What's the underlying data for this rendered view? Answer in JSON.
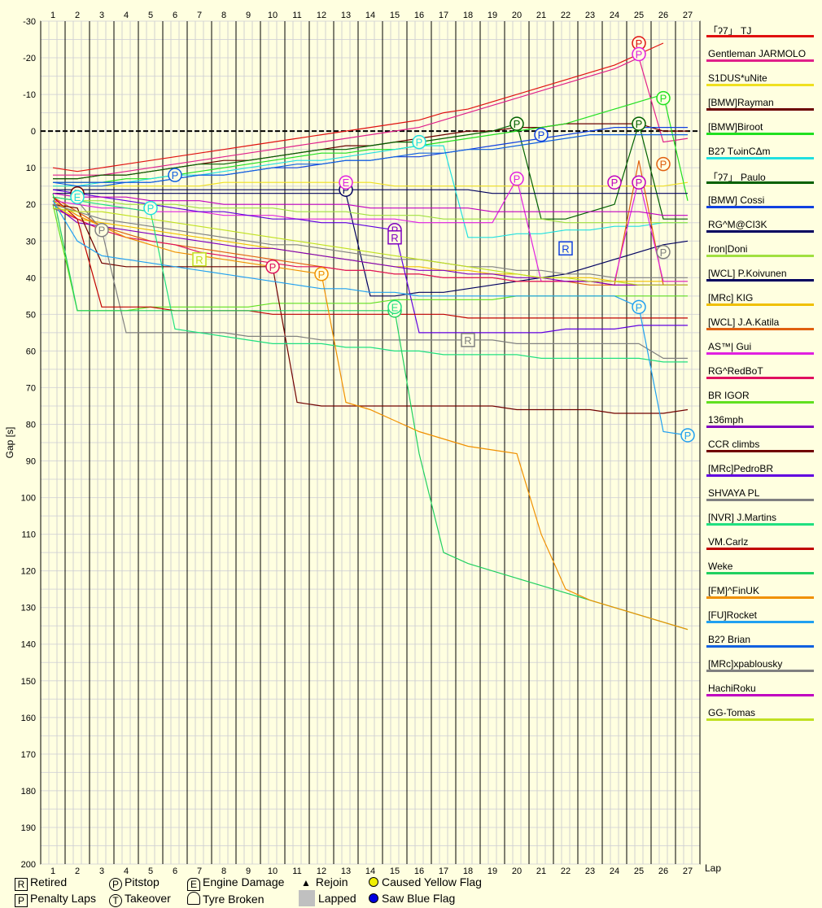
{
  "chart_data": {
    "type": "line",
    "xlabel": "Lap",
    "ylabel": "Gap [s]",
    "ylim": [
      -30,
      200
    ],
    "x_ticks": [
      "1",
      "2",
      "3",
      "4",
      "5",
      "6",
      "7",
      "8",
      "9",
      "10",
      "11",
      "12",
      "13",
      "14",
      "15",
      "16",
      "17",
      "18",
      "19",
      "20",
      "21",
      "22",
      "23",
      "24",
      "25",
      "26",
      "27"
    ],
    "y_ticks": [
      "-30",
      "-20",
      "-10",
      "0",
      "10",
      "20",
      "30",
      "40",
      "50",
      "60",
      "70",
      "80",
      "90",
      "100",
      "110",
      "120",
      "130",
      "140",
      "150",
      "160",
      "170",
      "180",
      "190",
      "200"
    ],
    "reference_line": 0,
    "grid": true,
    "legend_position": "right",
    "series": [
      {
        "name": "「ʔ7」 TJ",
        "color": "#e01010",
        "values": [
          10,
          11,
          10,
          9,
          8,
          7,
          6,
          5,
          4,
          3,
          2,
          1,
          0,
          -1,
          -2,
          -3,
          -5,
          -6,
          -8,
          -10,
          -12,
          -14,
          -16,
          -18,
          -21,
          -24,
          null
        ]
      },
      {
        "name": "Gentleman JARMOLO",
        "color": "#e0208a",
        "values": [
          12,
          12,
          12,
          11,
          10,
          9,
          8,
          7,
          6,
          5,
          4,
          3,
          2,
          1,
          0,
          -1,
          -3,
          -5,
          -7,
          -9,
          -11,
          -13,
          -15,
          -17,
          -20,
          3,
          2
        ]
      },
      {
        "name": "S1DUS*uNite",
        "color": "#f0e020",
        "values": [
          15,
          15,
          15,
          15,
          15,
          15,
          15,
          14,
          14,
          14,
          14,
          14,
          14,
          14,
          15,
          15,
          15,
          15,
          15,
          15,
          15,
          15,
          15,
          15,
          15,
          15,
          14
        ]
      },
      {
        "name": "[BMW]Rayman",
        "color": "#6a0000",
        "values": [
          13,
          13,
          12,
          12,
          11,
          10,
          9,
          8,
          8,
          7,
          6,
          5,
          4,
          4,
          3,
          2,
          1,
          0,
          0,
          -1,
          -1,
          -2,
          -2,
          -2,
          -2,
          0,
          0
        ]
      },
      {
        "name": "[BMW]Biroot",
        "color": "#20e020",
        "values": [
          14,
          14,
          14,
          13,
          13,
          12,
          11,
          10,
          9,
          8,
          7,
          6,
          6,
          5,
          5,
          4,
          3,
          2,
          1,
          0,
          -1,
          -2,
          -4,
          -6,
          -8,
          -10,
          19
        ]
      },
      {
        "name": "B2ʔ TωinCΔm",
        "color": "#20e0e0",
        "values": [
          15,
          15,
          14,
          14,
          13,
          12,
          12,
          11,
          10,
          9,
          8,
          8,
          7,
          6,
          5,
          4,
          4,
          29,
          29,
          28,
          28,
          27,
          27,
          26,
          26,
          25,
          25
        ]
      },
      {
        "name": "「ʔ7」 Paulo",
        "color": "#006000",
        "values": [
          13,
          13,
          12,
          12,
          11,
          10,
          9,
          9,
          8,
          7,
          6,
          5,
          5,
          4,
          3,
          3,
          2,
          1,
          0,
          -2,
          24,
          24,
          22,
          20,
          -2,
          24,
          24
        ]
      },
      {
        "name": "[BMW] Cossi",
        "color": "#1040e0",
        "values": [
          14,
          14,
          14,
          14,
          14,
          13,
          12,
          12,
          11,
          10,
          10,
          9,
          8,
          8,
          7,
          7,
          6,
          5,
          4,
          3,
          2,
          1,
          0,
          -1,
          -1,
          -1,
          -1
        ]
      },
      {
        "name": "RG^M@CI3K",
        "color": "#000060",
        "values": [
          17,
          17,
          17,
          17,
          17,
          17,
          17,
          17,
          17,
          17,
          17,
          17,
          17,
          45,
          45,
          44,
          44,
          43,
          42,
          41,
          40,
          39,
          37,
          35,
          33,
          31,
          30
        ]
      },
      {
        "name": "Iron|Doni",
        "color": "#a0e040",
        "values": [
          18,
          19,
          19,
          20,
          20,
          20,
          21,
          21,
          21,
          21,
          22,
          22,
          22,
          23,
          23,
          23,
          24,
          24,
          24,
          24,
          24,
          25,
          25,
          25,
          25,
          25,
          25
        ]
      },
      {
        "name": "[WCL] P.Koivunen",
        "color": "#000060",
        "values": [
          16,
          16,
          16,
          16,
          16,
          16,
          16,
          16,
          16,
          16,
          16,
          16,
          16,
          16,
          16,
          16,
          16,
          16,
          17,
          17,
          17,
          17,
          17,
          17,
          17,
          17,
          17
        ]
      },
      {
        "name": "[MRc] KIG",
        "color": "#f0c000",
        "values": [
          20,
          24,
          25,
          26,
          27,
          28,
          29,
          30,
          31,
          32,
          33,
          34,
          35,
          36,
          37,
          37,
          38,
          38,
          39,
          39,
          40,
          40,
          40,
          41,
          41,
          41,
          41
        ]
      },
      {
        "name": "[WCL] J.A.Katila",
        "color": "#e06010",
        "values": [
          18,
          22,
          26,
          28,
          30,
          31,
          32,
          33,
          34,
          35,
          36,
          37,
          38,
          38,
          39,
          39,
          40,
          40,
          40,
          41,
          41,
          41,
          42,
          42,
          8,
          42,
          42
        ]
      },
      {
        "name": "AS™| Gui",
        "color": "#e020e0",
        "values": [
          19,
          20,
          21,
          21,
          22,
          22,
          22,
          23,
          23,
          23,
          24,
          24,
          24,
          24,
          24,
          25,
          25,
          25,
          25,
          13,
          41,
          41,
          41,
          41,
          13,
          41,
          41
        ]
      },
      {
        "name": "RG^RedBoT",
        "color": "#e01060",
        "values": [
          21,
          24,
          27,
          29,
          30,
          31,
          33,
          34,
          35,
          36,
          37,
          37,
          38,
          38,
          39,
          39,
          40,
          40,
          40,
          41,
          41,
          41,
          41,
          42,
          42,
          42,
          42
        ]
      },
      {
        "name": "BR IGOR",
        "color": "#60e020",
        "values": [
          20,
          49,
          49,
          49,
          48,
          48,
          48,
          48,
          48,
          47,
          47,
          47,
          47,
          47,
          46,
          46,
          46,
          46,
          46,
          45,
          45,
          45,
          45,
          45,
          45,
          45,
          45
        ]
      },
      {
        "name": "136mph",
        "color": "#8000c0",
        "values": [
          20,
          25,
          26,
          27,
          28,
          29,
          30,
          31,
          32,
          32,
          33,
          34,
          35,
          36,
          37,
          38,
          38,
          39,
          39,
          40,
          40,
          41,
          41,
          42,
          42,
          42,
          42
        ]
      },
      {
        "name": "CCR climbs",
        "color": "#700000",
        "values": [
          20,
          21,
          36,
          37,
          37,
          37,
          37,
          37,
          37,
          37,
          74,
          75,
          75,
          75,
          75,
          75,
          75,
          75,
          75,
          76,
          76,
          76,
          76,
          77,
          77,
          77,
          76
        ]
      },
      {
        "name": "[MRc]PedroBR",
        "color": "#6000e0",
        "values": [
          16,
          17,
          18,
          19,
          20,
          21,
          22,
          22,
          23,
          24,
          24,
          25,
          25,
          26,
          27,
          55,
          55,
          55,
          55,
          55,
          55,
          54,
          54,
          54,
          53,
          53,
          53
        ]
      },
      {
        "name": "SHVAYA PL",
        "color": "#808080",
        "values": [
          18,
          19,
          27,
          55,
          55,
          55,
          55,
          55,
          56,
          56,
          56,
          57,
          57,
          57,
          57,
          57,
          57,
          57,
          57,
          58,
          58,
          58,
          58,
          58,
          58,
          62,
          62
        ]
      },
      {
        "name": "[NVR] J.Martins",
        "color": "#20e080",
        "values": [
          18,
          19,
          20,
          21,
          22,
          54,
          55,
          56,
          57,
          58,
          58,
          58,
          59,
          59,
          60,
          60,
          61,
          61,
          61,
          61,
          62,
          62,
          62,
          62,
          62,
          63,
          63
        ]
      },
      {
        "name": "VM.Carlz",
        "color": "#c00000",
        "values": [
          18,
          24,
          48,
          48,
          48,
          49,
          49,
          49,
          49,
          50,
          50,
          50,
          50,
          50,
          50,
          50,
          50,
          51,
          51,
          51,
          51,
          51,
          51,
          51,
          51,
          51,
          51
        ]
      },
      {
        "name": "Weke",
        "color": "#20d060",
        "values": [
          17,
          49,
          49,
          49,
          49,
          49,
          49,
          49,
          49,
          49,
          49,
          49,
          49,
          49,
          49,
          88,
          115,
          118,
          120,
          122,
          124,
          126,
          128,
          130,
          132,
          134,
          136
        ]
      },
      {
        "name": "[FM]^FinUK",
        "color": "#f09000",
        "values": [
          19,
          23,
          26,
          29,
          31,
          33,
          34,
          35,
          36,
          37,
          38,
          39,
          74,
          76,
          79,
          82,
          84,
          86,
          87,
          88,
          110,
          125,
          128,
          130,
          132,
          134,
          136
        ]
      },
      {
        "name": "[FU]Rocket",
        "color": "#20a0f0",
        "values": [
          19,
          30,
          34,
          35,
          36,
          37,
          38,
          39,
          40,
          41,
          42,
          43,
          43,
          44,
          44,
          45,
          45,
          45,
          45,
          45,
          45,
          45,
          45,
          45,
          48,
          82,
          83
        ]
      },
      {
        "name": "B2ʔ Brian",
        "color": "#1060e0",
        "values": [
          14,
          15,
          15,
          14,
          14,
          13,
          12,
          12,
          11,
          10,
          9,
          9,
          8,
          8,
          7,
          6,
          6,
          5,
          5,
          4,
          3,
          2,
          1,
          1,
          1,
          1,
          1
        ]
      },
      {
        "name": "[MRc]xpablousky",
        "color": "#808080",
        "values": [
          20,
          22,
          24,
          25,
          26,
          27,
          28,
          29,
          30,
          31,
          31,
          32,
          33,
          34,
          35,
          35,
          36,
          37,
          37,
          38,
          38,
          39,
          39,
          40,
          40,
          40,
          40
        ]
      },
      {
        "name": "HachiRoku",
        "color": "#c000c0",
        "values": [
          17,
          18,
          18,
          18,
          19,
          19,
          19,
          20,
          20,
          20,
          20,
          20,
          20,
          21,
          21,
          21,
          21,
          21,
          22,
          22,
          22,
          22,
          22,
          22,
          22,
          23,
          23
        ]
      },
      {
        "name": "GG-Tomas",
        "color": "#c0e020",
        "values": [
          21,
          22,
          22,
          23,
          24,
          25,
          26,
          27,
          28,
          29,
          30,
          31,
          32,
          33,
          34,
          35,
          36,
          37,
          38,
          39,
          40,
          40,
          41,
          41,
          42,
          42,
          42
        ]
      }
    ],
    "markers": [
      {
        "symbol": "P",
        "lap": 25,
        "value": -24,
        "color": "#e01010"
      },
      {
        "symbol": "P",
        "lap": 25,
        "value": -21,
        "color": "#e020e0"
      },
      {
        "symbol": "P",
        "lap": 26,
        "value": -9,
        "color": "#20e020"
      },
      {
        "symbol": "P",
        "lap": 20,
        "value": -2,
        "color": "#006000"
      },
      {
        "symbol": "P",
        "lap": 25,
        "value": -2,
        "color": "#006000"
      },
      {
        "symbol": "P",
        "lap": 21,
        "value": 1,
        "color": "#1040e0"
      },
      {
        "symbol": "P",
        "lap": 16,
        "value": 3,
        "color": "#20e0e0"
      },
      {
        "symbol": "P",
        "lap": 26,
        "value": 9,
        "color": "#e06010"
      },
      {
        "symbol": "P",
        "lap": 6,
        "value": 12,
        "color": "#1060e0"
      },
      {
        "symbol": "P",
        "lap": 20,
        "value": 13,
        "color": "#e020e0"
      },
      {
        "symbol": "P",
        "lap": 24,
        "value": 14,
        "color": "#c000c0"
      },
      {
        "symbol": "P",
        "lap": 25,
        "value": 14,
        "color": "#c000c0"
      },
      {
        "symbol": "P",
        "lap": 13,
        "value": 16,
        "color": "#000060"
      },
      {
        "symbol": "P",
        "lap": 2,
        "value": 17,
        "color": "#700000"
      },
      {
        "symbol": "P",
        "lap": 5,
        "value": 21,
        "color": "#20e0e0"
      },
      {
        "symbol": "P",
        "lap": 3,
        "value": 27,
        "color": "#808080"
      },
      {
        "symbol": "P",
        "lap": 15,
        "value": 27,
        "color": "#8000c0"
      },
      {
        "symbol": "P",
        "lap": 26,
        "value": 33,
        "color": "#808080"
      },
      {
        "symbol": "P",
        "lap": 10,
        "value": 37,
        "color": "#e01060"
      },
      {
        "symbol": "P",
        "lap": 12,
        "value": 39,
        "color": "#f09000"
      },
      {
        "symbol": "P",
        "lap": 25,
        "value": 48,
        "color": "#20a0f0"
      },
      {
        "symbol": "P",
        "lap": 15,
        "value": 49,
        "color": "#20d060"
      },
      {
        "symbol": "P",
        "lap": 27,
        "value": 83,
        "color": "#20a0f0"
      },
      {
        "symbol": "R",
        "lap": 15,
        "value": 29,
        "color": "#8000c0"
      },
      {
        "symbol": "R",
        "lap": 22,
        "value": 32,
        "color": "#1040e0"
      },
      {
        "symbol": "R",
        "lap": 7,
        "value": 35,
        "color": "#c0e020"
      },
      {
        "symbol": "R",
        "lap": 18,
        "value": 57,
        "color": "#808080"
      },
      {
        "symbol": "E",
        "lap": 2,
        "value": 18,
        "color": "#20e0e0"
      },
      {
        "symbol": "E",
        "lap": 13,
        "value": 14,
        "color": "#e020e0"
      },
      {
        "symbol": "E",
        "lap": 15,
        "value": 48,
        "color": "#20e080"
      }
    ]
  },
  "legend_key": {
    "retired": "Retired",
    "pitstop": "Pitstop",
    "engine_damage": "Engine Damage",
    "rejoin": "Rejoin",
    "caused_yellow": "Caused Yellow Flag",
    "penalty_laps": "Penalty Laps",
    "takeover": "Takeover",
    "tyre_broken": "Tyre Broken",
    "lapped": "Lapped",
    "saw_blue": "Saw Blue Flag",
    "sym_r": "R",
    "sym_p": "P",
    "sym_e": "E",
    "sym_t": "T",
    "sym_rejoin": "▲",
    "colors": {
      "yellow_flag": "#f0f000",
      "blue_flag": "#0000e0",
      "lapped": "#c0c0c0"
    }
  }
}
